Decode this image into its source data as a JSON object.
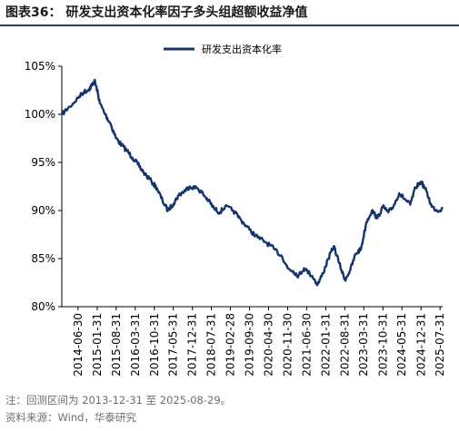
{
  "header": {
    "figure_label": "图表36：",
    "title": "研发支出资本化率因子多头组超额收益净值"
  },
  "notes": {
    "range_note": "注：回测区间为 2013-12-31 至 2025-08-29。",
    "source_note": "资料来源：Wind，华泰研究"
  },
  "colors": {
    "series": "#15346e",
    "title_rule": "#1f3a68",
    "axis": "#000000"
  },
  "chart_data": {
    "type": "line",
    "title": "",
    "xlabel": "",
    "ylabel": "",
    "ylim": [
      80,
      105
    ],
    "yticks": [
      80,
      85,
      90,
      95,
      100,
      105
    ],
    "ytick_labels": [
      "80%",
      "85%",
      "90%",
      "95%",
      "100%",
      "105%"
    ],
    "grid": false,
    "legend_position": "top-center",
    "x_tick_labels": [
      "2014-06-30",
      "2015-01-31",
      "2015-08-31",
      "2016-03-31",
      "2016-10-31",
      "2017-05-31",
      "2017-12-31",
      "2018-07-31",
      "2019-02-28",
      "2019-09-30",
      "2020-04-30",
      "2020-11-30",
      "2021-06-30",
      "2022-01-31",
      "2022-08-31",
      "2023-03-31",
      "2023-10-31",
      "2024-05-31",
      "2024-12-31",
      "2025-07-31"
    ],
    "x_start": "2013-12-31",
    "x_end": "2025-08-29",
    "series": [
      {
        "name": "研发支出资本化率",
        "points": [
          [
            "2013-12-31",
            100.0
          ],
          [
            "2014-03-31",
            100.8
          ],
          [
            "2014-06-30",
            101.7
          ],
          [
            "2014-08-31",
            102.3
          ],
          [
            "2014-10-31",
            102.6
          ],
          [
            "2014-11-30",
            103.0
          ],
          [
            "2014-12-31",
            103.5
          ],
          [
            "2015-01-31",
            102.5
          ],
          [
            "2015-02-28",
            101.2
          ],
          [
            "2015-04-30",
            100.0
          ],
          [
            "2015-06-30",
            99.0
          ],
          [
            "2015-08-31",
            97.5
          ],
          [
            "2015-10-31",
            96.8
          ],
          [
            "2015-12-31",
            96.2
          ],
          [
            "2016-02-29",
            95.5
          ],
          [
            "2016-04-30",
            94.8
          ],
          [
            "2016-06-30",
            94.0
          ],
          [
            "2016-09-30",
            93.0
          ],
          [
            "2016-11-30",
            92.3
          ],
          [
            "2017-01-31",
            91.0
          ],
          [
            "2017-03-31",
            90.0
          ],
          [
            "2017-05-31",
            90.7
          ],
          [
            "2017-07-31",
            91.6
          ],
          [
            "2017-09-30",
            92.0
          ],
          [
            "2017-11-30",
            92.5
          ],
          [
            "2018-02-28",
            92.3
          ],
          [
            "2018-04-30",
            91.7
          ],
          [
            "2018-06-30",
            91.0
          ],
          [
            "2018-08-31",
            90.2
          ],
          [
            "2018-10-31",
            89.8
          ],
          [
            "2018-12-31",
            90.4
          ],
          [
            "2019-03-31",
            90.0
          ],
          [
            "2019-06-30",
            89.0
          ],
          [
            "2019-09-30",
            88.0
          ],
          [
            "2019-12-31",
            87.2
          ],
          [
            "2020-03-31",
            86.7
          ],
          [
            "2020-06-30",
            86.0
          ],
          [
            "2020-09-30",
            85.2
          ],
          [
            "2020-11-30",
            84.0
          ],
          [
            "2021-01-31",
            83.7
          ],
          [
            "2021-03-31",
            83.2
          ],
          [
            "2021-05-31",
            84.0
          ],
          [
            "2021-08-31",
            83.2
          ],
          [
            "2021-10-31",
            82.3
          ],
          [
            "2021-12-31",
            83.5
          ],
          [
            "2022-02-28",
            85.0
          ],
          [
            "2022-04-30",
            86.3
          ],
          [
            "2022-06-30",
            84.5
          ],
          [
            "2022-08-31",
            82.8
          ],
          [
            "2022-10-31",
            83.8
          ],
          [
            "2022-12-31",
            85.5
          ],
          [
            "2023-02-28",
            86.0
          ],
          [
            "2023-04-30",
            88.8
          ],
          [
            "2023-06-30",
            90.0
          ],
          [
            "2023-08-31",
            89.2
          ],
          [
            "2023-10-31",
            90.4
          ],
          [
            "2023-12-31",
            89.8
          ],
          [
            "2024-02-29",
            90.5
          ],
          [
            "2024-04-30",
            91.8
          ],
          [
            "2024-06-30",
            91.2
          ],
          [
            "2024-08-31",
            90.6
          ],
          [
            "2024-10-31",
            92.4
          ],
          [
            "2024-12-31",
            93.0
          ],
          [
            "2025-02-28",
            92.0
          ],
          [
            "2025-04-30",
            90.4
          ],
          [
            "2025-06-30",
            90.0
          ],
          [
            "2025-08-29",
            90.2
          ]
        ]
      }
    ]
  }
}
